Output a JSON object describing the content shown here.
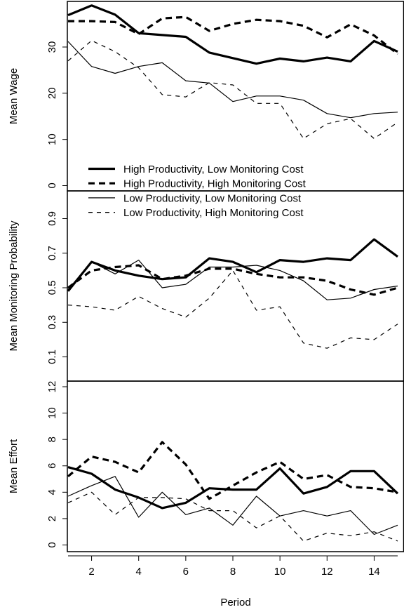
{
  "chart_data": [
    {
      "type": "line",
      "ylabel": "Mean Wage",
      "ylim": [
        0,
        40
      ],
      "yticks": [
        "0",
        "10",
        "20",
        "30"
      ],
      "x": [
        1,
        2,
        3,
        4,
        5,
        6,
        7,
        8,
        9,
        10,
        11,
        12,
        13,
        14,
        15
      ],
      "series": [
        {
          "name": "High Productivity, Low Monitoring Cost",
          "values": [
            36.9,
            39.0,
            37.0,
            33.0,
            32.6,
            32.2,
            28.8,
            27.6,
            26.4,
            27.5,
            26.9,
            27.7,
            26.9,
            31.3,
            29.0
          ]
        },
        {
          "name": "High Productivity, High Monitoring Cost",
          "values": [
            35.6,
            35.6,
            35.4,
            32.8,
            36.2,
            36.5,
            33.5,
            35.0,
            35.9,
            35.6,
            34.6,
            32.1,
            34.9,
            32.5,
            28.5
          ]
        },
        {
          "name": "Low Productivity, Low Monitoring Cost",
          "values": [
            31.2,
            25.8,
            24.3,
            25.8,
            26.6,
            22.7,
            22.2,
            18.2,
            19.4,
            19.4,
            18.5,
            15.6,
            14.7,
            15.6,
            15.9
          ]
        },
        {
          "name": "Low Productivity, High Monitoring Cost",
          "values": [
            27.0,
            31.4,
            29.0,
            25.5,
            19.7,
            19.2,
            22.3,
            21.8,
            17.8,
            17.8,
            10.2,
            13.4,
            14.5,
            10.2,
            13.7
          ]
        }
      ]
    },
    {
      "type": "line",
      "ylabel": "Mean Monitoring Probability",
      "ylim": [
        0,
        1.0
      ],
      "yticks": [
        "0.1",
        "0.3",
        "0.5",
        "0.7",
        "0.9"
      ],
      "x": [
        1,
        2,
        3,
        4,
        5,
        6,
        7,
        8,
        9,
        10,
        11,
        12,
        13,
        14,
        15
      ],
      "series": [
        {
          "name": "High Productivity, Low Monitoring Cost",
          "values": [
            0.48,
            0.65,
            0.6,
            0.57,
            0.55,
            0.56,
            0.67,
            0.65,
            0.59,
            0.66,
            0.65,
            0.67,
            0.66,
            0.78,
            0.68
          ]
        },
        {
          "name": "High Productivity, High Monitoring Cost",
          "values": [
            0.5,
            0.6,
            0.62,
            0.63,
            0.55,
            0.57,
            0.61,
            0.61,
            0.58,
            0.56,
            0.56,
            0.54,
            0.49,
            0.46,
            0.5
          ]
        },
        {
          "name": "Low Productivity, Low Monitoring Cost",
          "values": [
            0.49,
            0.65,
            0.58,
            0.66,
            0.5,
            0.52,
            0.62,
            0.62,
            0.63,
            0.6,
            0.54,
            0.43,
            0.44,
            0.49,
            0.51
          ]
        },
        {
          "name": "Low Productivity, High Monitoring Cost",
          "values": [
            0.4,
            0.39,
            0.37,
            0.45,
            0.38,
            0.33,
            0.44,
            0.6,
            0.37,
            0.39,
            0.18,
            0.15,
            0.21,
            0.2,
            0.29
          ]
        }
      ]
    },
    {
      "type": "line",
      "xlabel": "Period",
      "ylabel": "Mean Effort",
      "ylim": [
        0,
        12
      ],
      "yticks": [
        "0",
        "2",
        "4",
        "6",
        "8",
        "10",
        "12"
      ],
      "xticks": [
        "2",
        "4",
        "6",
        "8",
        "10",
        "12",
        "14"
      ],
      "x": [
        1,
        2,
        3,
        4,
        5,
        6,
        7,
        8,
        9,
        10,
        11,
        12,
        13,
        14,
        15
      ],
      "series": [
        {
          "name": "High Productivity, Low Monitoring Cost",
          "values": [
            5.9,
            5.4,
            4.2,
            3.6,
            2.8,
            3.2,
            4.3,
            4.2,
            4.2,
            5.8,
            3.9,
            4.4,
            5.6,
            5.6,
            3.9
          ]
        },
        {
          "name": "High Productivity, High Monitoring Cost",
          "values": [
            5.2,
            6.7,
            6.3,
            5.5,
            7.8,
            6.1,
            3.5,
            4.5,
            5.5,
            6.3,
            5.0,
            5.3,
            4.4,
            4.3,
            4.0
          ]
        },
        {
          "name": "Low Productivity, Low Monitoring Cost",
          "values": [
            3.7,
            4.5,
            5.2,
            2.1,
            4.0,
            2.3,
            2.8,
            1.5,
            3.7,
            2.2,
            2.6,
            2.2,
            2.6,
            0.8,
            1.5
          ]
        },
        {
          "name": "Low Productivity, High Monitoring Cost",
          "values": [
            3.2,
            4.0,
            2.3,
            3.6,
            3.6,
            3.5,
            2.6,
            2.6,
            1.3,
            2.2,
            0.3,
            0.9,
            0.7,
            1.0,
            0.3
          ]
        }
      ]
    }
  ],
  "legend": {
    "placement": "bottom of top panel",
    "entries": [
      {
        "label": "High Productivity, Low Monitoring Cost",
        "style": "thick-solid"
      },
      {
        "label": "High Productivity, High Monitoring Cost",
        "style": "thick-dashed"
      },
      {
        "label": "Low Productivity, Low Monitoring Cost",
        "style": "thin-solid"
      },
      {
        "label": "Low Productivity, High Monitoring Cost",
        "style": "thin-dashed"
      }
    ]
  },
  "colors": {
    "line": "#000000",
    "background": "#ffffff"
  }
}
